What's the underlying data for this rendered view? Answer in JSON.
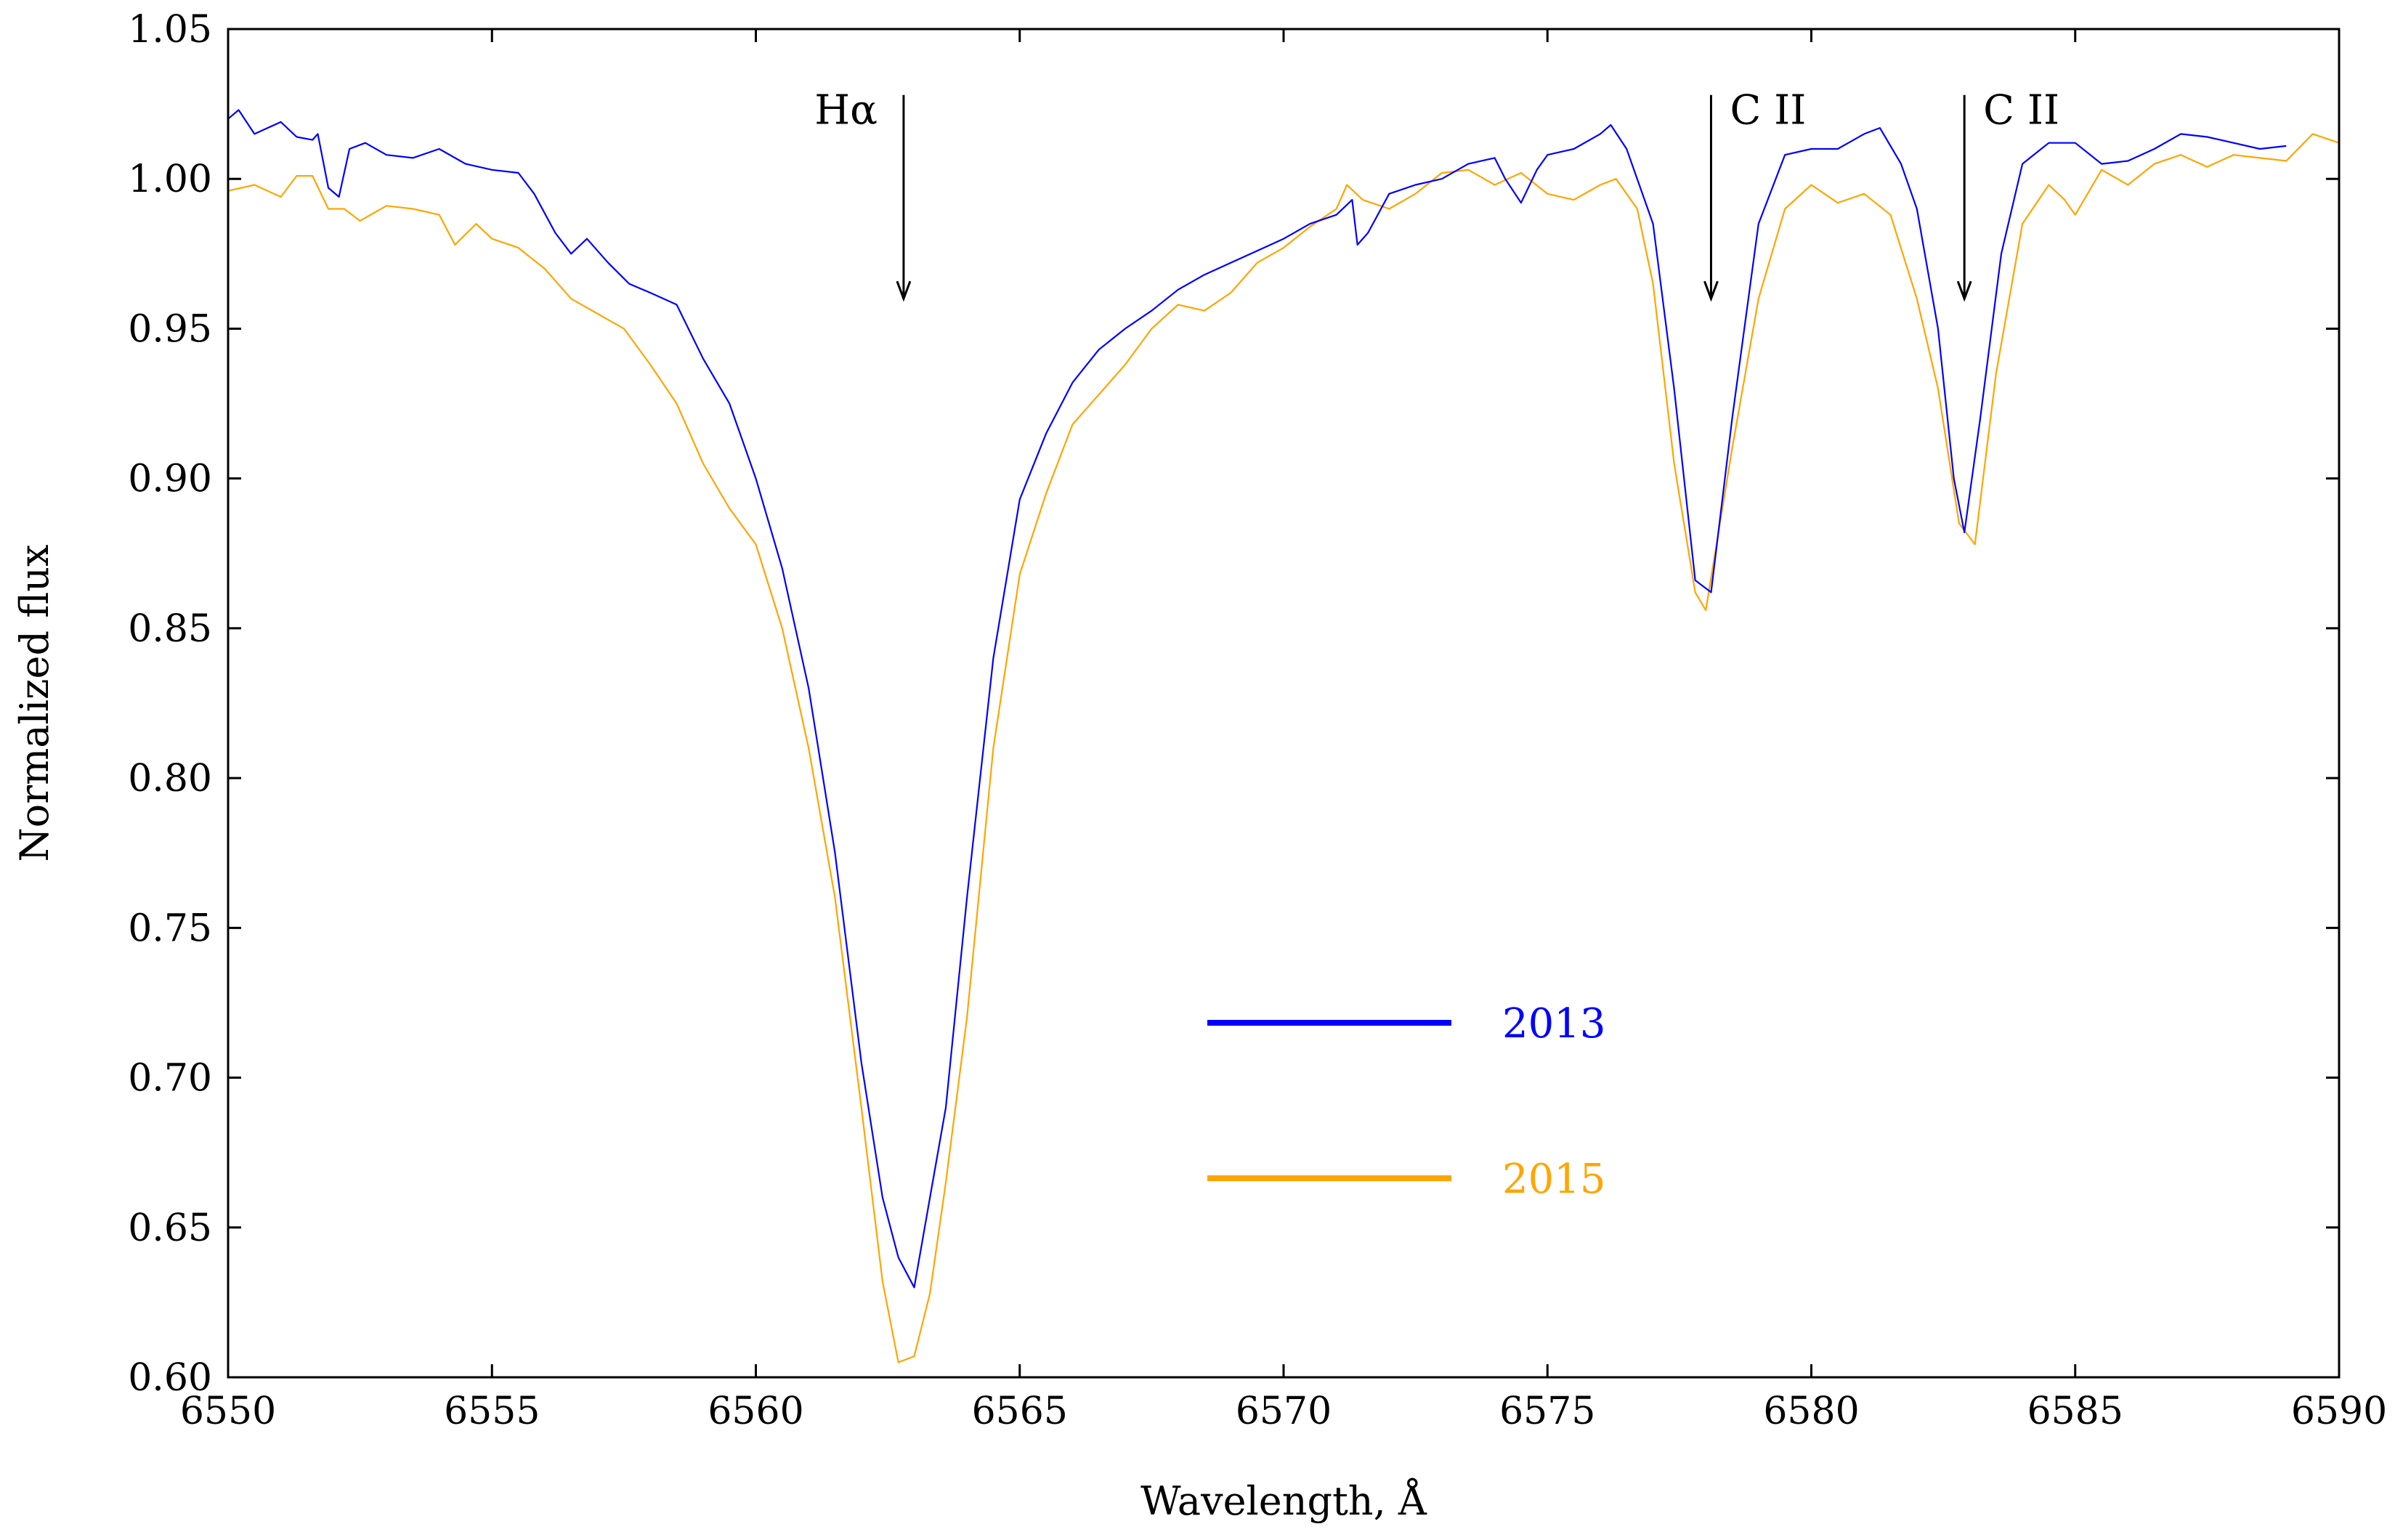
{
  "chart_data": {
    "type": "line",
    "xlabel": "Wavelength, Å",
    "ylabel": "Normalized flux",
    "xlim": [
      6550,
      6590
    ],
    "ylim": [
      0.6,
      1.05
    ],
    "xticks": [
      6550,
      6555,
      6560,
      6565,
      6570,
      6575,
      6580,
      6585,
      6590
    ],
    "yticks": [
      "0.60",
      "0.65",
      "0.70",
      "0.75",
      "0.80",
      "0.85",
      "0.90",
      "0.95",
      "1.00",
      "1.05"
    ],
    "grid": false,
    "legend_position": "center-bottom",
    "series": [
      {
        "name": "2013",
        "color": "#0000ff",
        "points": [
          [
            6550.0,
            1.02
          ],
          [
            6550.2,
            1.023
          ],
          [
            6550.5,
            1.015
          ],
          [
            6551.0,
            1.019
          ],
          [
            6551.3,
            1.014
          ],
          [
            6551.6,
            1.013
          ],
          [
            6551.7,
            1.015
          ],
          [
            6551.9,
            0.997
          ],
          [
            6552.1,
            0.994
          ],
          [
            6552.3,
            1.01
          ],
          [
            6552.6,
            1.012
          ],
          [
            6553.0,
            1.008
          ],
          [
            6553.5,
            1.007
          ],
          [
            6554.0,
            1.01
          ],
          [
            6554.5,
            1.005
          ],
          [
            6555.0,
            1.003
          ],
          [
            6555.5,
            1.002
          ],
          [
            6555.8,
            0.995
          ],
          [
            6556.2,
            0.982
          ],
          [
            6556.5,
            0.975
          ],
          [
            6556.8,
            0.98
          ],
          [
            6557.2,
            0.972
          ],
          [
            6557.6,
            0.965
          ],
          [
            6558.0,
            0.962
          ],
          [
            6558.5,
            0.958
          ],
          [
            6559.0,
            0.94
          ],
          [
            6559.5,
            0.925
          ],
          [
            6560.0,
            0.9
          ],
          [
            6560.5,
            0.87
          ],
          [
            6561.0,
            0.83
          ],
          [
            6561.5,
            0.775
          ],
          [
            6562.0,
            0.705
          ],
          [
            6562.4,
            0.66
          ],
          [
            6562.7,
            0.64
          ],
          [
            6563.0,
            0.63
          ],
          [
            6563.3,
            0.66
          ],
          [
            6563.6,
            0.69
          ],
          [
            6564.0,
            0.76
          ],
          [
            6564.5,
            0.84
          ],
          [
            6565.0,
            0.893
          ],
          [
            6565.5,
            0.915
          ],
          [
            6566.0,
            0.932
          ],
          [
            6566.5,
            0.943
          ],
          [
            6567.0,
            0.95
          ],
          [
            6567.5,
            0.956
          ],
          [
            6568.0,
            0.963
          ],
          [
            6568.5,
            0.968
          ],
          [
            6569.0,
            0.972
          ],
          [
            6569.5,
            0.976
          ],
          [
            6570.0,
            0.98
          ],
          [
            6570.5,
            0.985
          ],
          [
            6571.0,
            0.988
          ],
          [
            6571.3,
            0.993
          ],
          [
            6571.4,
            0.978
          ],
          [
            6571.6,
            0.982
          ],
          [
            6572.0,
            0.995
          ],
          [
            6572.5,
            0.998
          ],
          [
            6573.0,
            1.0
          ],
          [
            6573.5,
            1.005
          ],
          [
            6574.0,
            1.007
          ],
          [
            6574.2,
            1.0
          ],
          [
            6574.5,
            0.992
          ],
          [
            6574.8,
            1.003
          ],
          [
            6575.0,
            1.008
          ],
          [
            6575.5,
            1.01
          ],
          [
            6576.0,
            1.015
          ],
          [
            6576.2,
            1.018
          ],
          [
            6576.5,
            1.01
          ],
          [
            6577.0,
            0.985
          ],
          [
            6577.4,
            0.93
          ],
          [
            6577.8,
            0.866
          ],
          [
            6578.1,
            0.862
          ],
          [
            6578.5,
            0.92
          ],
          [
            6579.0,
            0.985
          ],
          [
            6579.5,
            1.008
          ],
          [
            6580.0,
            1.01
          ],
          [
            6580.5,
            1.01
          ],
          [
            6581.0,
            1.015
          ],
          [
            6581.3,
            1.017
          ],
          [
            6581.7,
            1.005
          ],
          [
            6582.0,
            0.99
          ],
          [
            6582.4,
            0.95
          ],
          [
            6582.7,
            0.9
          ],
          [
            6582.9,
            0.882
          ],
          [
            6583.2,
            0.92
          ],
          [
            6583.6,
            0.975
          ],
          [
            6584.0,
            1.005
          ],
          [
            6584.5,
            1.012
          ],
          [
            6585.0,
            1.012
          ],
          [
            6585.5,
            1.005
          ],
          [
            6586.0,
            1.006
          ],
          [
            6586.5,
            1.01
          ],
          [
            6587.0,
            1.015
          ],
          [
            6587.5,
            1.014
          ],
          [
            6588.0,
            1.012
          ],
          [
            6588.5,
            1.01
          ],
          [
            6589.0,
            1.011
          ]
        ]
      },
      {
        "name": "2015",
        "color": "#ffa500",
        "points": [
          [
            6550.0,
            0.996
          ],
          [
            6550.5,
            0.998
          ],
          [
            6551.0,
            0.994
          ],
          [
            6551.3,
            1.001
          ],
          [
            6551.6,
            1.001
          ],
          [
            6551.9,
            0.99
          ],
          [
            6552.2,
            0.99
          ],
          [
            6552.5,
            0.986
          ],
          [
            6553.0,
            0.991
          ],
          [
            6553.5,
            0.99
          ],
          [
            6554.0,
            0.988
          ],
          [
            6554.3,
            0.978
          ],
          [
            6554.7,
            0.985
          ],
          [
            6555.0,
            0.98
          ],
          [
            6555.5,
            0.977
          ],
          [
            6556.0,
            0.97
          ],
          [
            6556.5,
            0.96
          ],
          [
            6557.0,
            0.955
          ],
          [
            6557.5,
            0.95
          ],
          [
            6558.0,
            0.938
          ],
          [
            6558.5,
            0.925
          ],
          [
            6559.0,
            0.905
          ],
          [
            6559.5,
            0.89
          ],
          [
            6560.0,
            0.878
          ],
          [
            6560.5,
            0.85
          ],
          [
            6561.0,
            0.81
          ],
          [
            6561.5,
            0.76
          ],
          [
            6562.0,
            0.69
          ],
          [
            6562.4,
            0.632
          ],
          [
            6562.7,
            0.605
          ],
          [
            6563.0,
            0.607
          ],
          [
            6563.3,
            0.628
          ],
          [
            6563.6,
            0.665
          ],
          [
            6564.0,
            0.72
          ],
          [
            6564.5,
            0.81
          ],
          [
            6565.0,
            0.868
          ],
          [
            6565.5,
            0.895
          ],
          [
            6566.0,
            0.918
          ],
          [
            6566.5,
            0.928
          ],
          [
            6567.0,
            0.938
          ],
          [
            6567.5,
            0.95
          ],
          [
            6568.0,
            0.958
          ],
          [
            6568.5,
            0.956
          ],
          [
            6569.0,
            0.962
          ],
          [
            6569.5,
            0.972
          ],
          [
            6570.0,
            0.977
          ],
          [
            6570.5,
            0.984
          ],
          [
            6571.0,
            0.99
          ],
          [
            6571.2,
            0.998
          ],
          [
            6571.5,
            0.993
          ],
          [
            6572.0,
            0.99
          ],
          [
            6572.5,
            0.995
          ],
          [
            6573.0,
            1.002
          ],
          [
            6573.5,
            1.003
          ],
          [
            6574.0,
            0.998
          ],
          [
            6574.5,
            1.002
          ],
          [
            6575.0,
            0.995
          ],
          [
            6575.5,
            0.993
          ],
          [
            6576.0,
            0.998
          ],
          [
            6576.3,
            1.0
          ],
          [
            6576.7,
            0.99
          ],
          [
            6577.0,
            0.965
          ],
          [
            6577.4,
            0.905
          ],
          [
            6577.8,
            0.862
          ],
          [
            6578.0,
            0.856
          ],
          [
            6578.5,
            0.91
          ],
          [
            6579.0,
            0.96
          ],
          [
            6579.5,
            0.99
          ],
          [
            6580.0,
            0.998
          ],
          [
            6580.5,
            0.992
          ],
          [
            6581.0,
            0.995
          ],
          [
            6581.5,
            0.988
          ],
          [
            6582.0,
            0.96
          ],
          [
            6582.4,
            0.93
          ],
          [
            6582.8,
            0.885
          ],
          [
            6583.1,
            0.878
          ],
          [
            6583.5,
            0.935
          ],
          [
            6584.0,
            0.985
          ],
          [
            6584.5,
            0.998
          ],
          [
            6584.8,
            0.993
          ],
          [
            6585.0,
            0.988
          ],
          [
            6585.5,
            1.003
          ],
          [
            6586.0,
            0.998
          ],
          [
            6586.5,
            1.005
          ],
          [
            6587.0,
            1.008
          ],
          [
            6587.5,
            1.004
          ],
          [
            6588.0,
            1.008
          ],
          [
            6588.5,
            1.007
          ],
          [
            6589.0,
            1.006
          ],
          [
            6589.5,
            1.015
          ],
          [
            6590.0,
            1.012
          ]
        ]
      }
    ],
    "annotations": [
      {
        "text": "Hα",
        "x": 6562.8,
        "y_top": 1.028,
        "y_bottom": 0.96
      },
      {
        "text": "C II",
        "x": 6578.1,
        "y_top": 1.028,
        "y_bottom": 0.96
      },
      {
        "text": "C II",
        "x": 6582.9,
        "y_top": 1.028,
        "y_bottom": 0.96
      }
    ],
    "legend": [
      {
        "label": "2013",
        "color": "#0000ff"
      },
      {
        "label": "2015",
        "color": "#ffa500"
      }
    ]
  }
}
